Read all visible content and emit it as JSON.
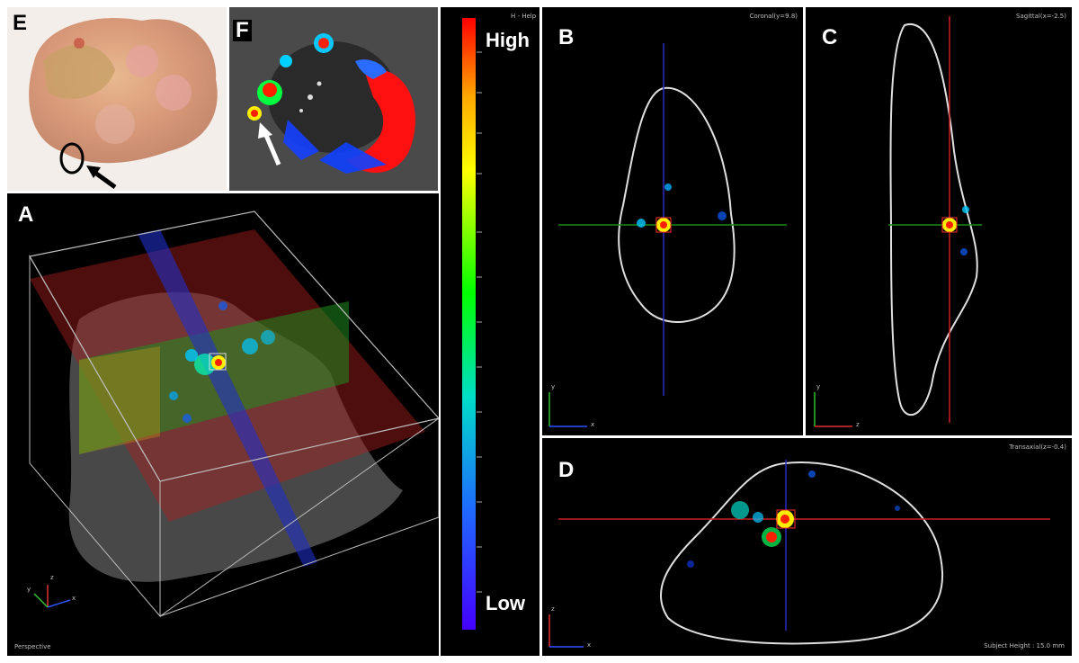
{
  "panels": {
    "E": {
      "label": "E"
    },
    "F": {
      "label": "F"
    },
    "A": {
      "label": "A",
      "view": "Perspective"
    },
    "B": {
      "label": "B",
      "title": "Coronal(y=9.8)"
    },
    "C": {
      "label": "C",
      "title": "Sagittal(x=-2.5)"
    },
    "D": {
      "label": "D",
      "title": "Transaxial(z=-0.4)",
      "footer": "Subject Height : 15.0 mm"
    }
  },
  "colorbar": {
    "help": "H - Help",
    "high": "High",
    "low": "Low",
    "stops": [
      "#ff0000",
      "#ffaa00",
      "#ffff00",
      "#00ff00",
      "#00c8ff",
      "#1e3cff",
      "#5000ff"
    ]
  },
  "axes": {
    "x": "x",
    "y": "y",
    "z": "z"
  }
}
